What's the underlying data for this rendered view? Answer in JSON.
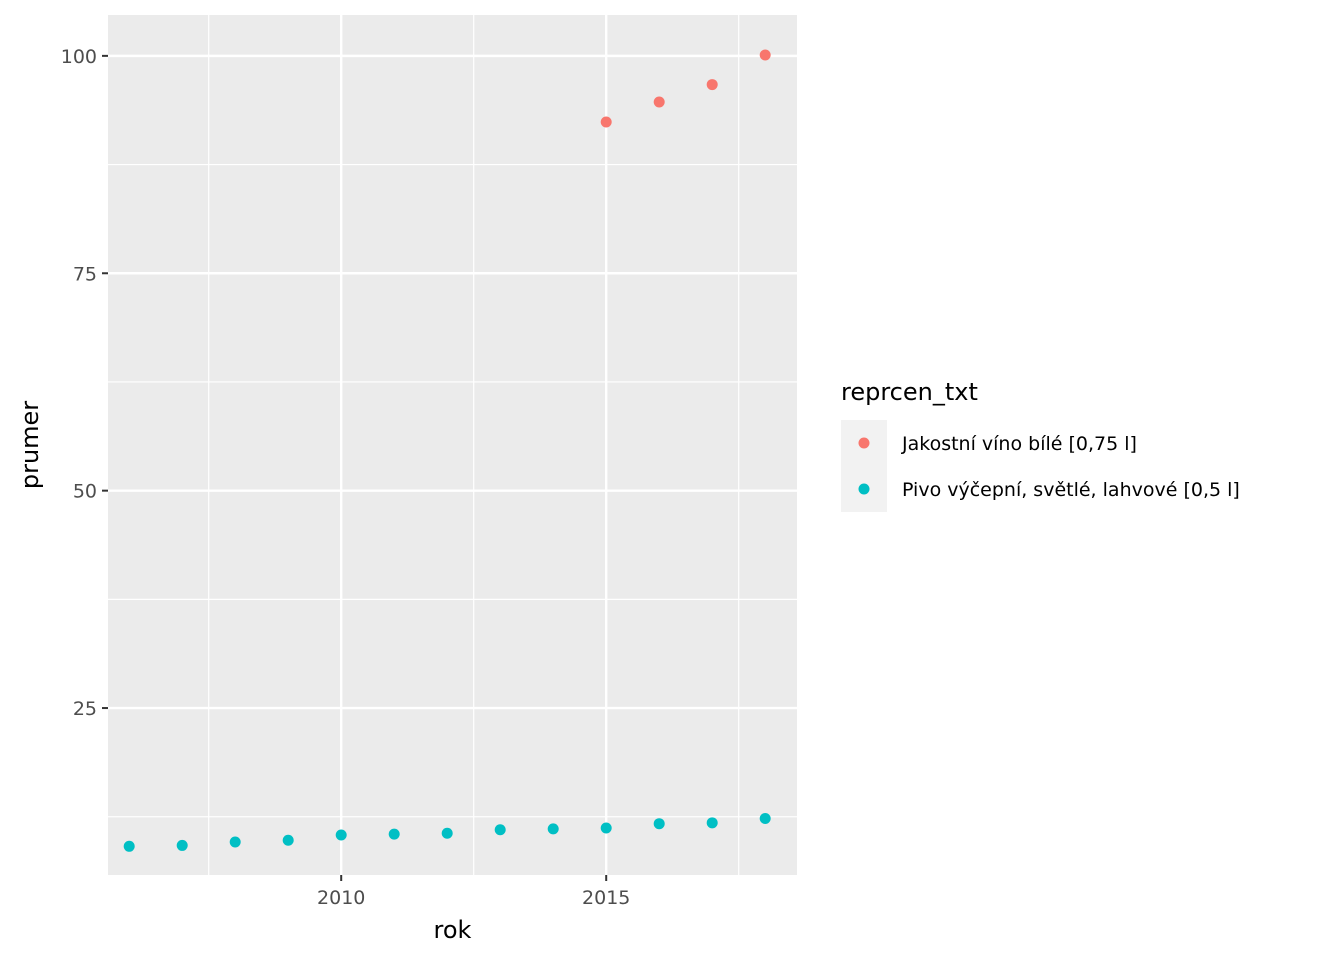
{
  "chart_data": {
    "type": "scatter",
    "xlabel": "rok",
    "ylabel": "prumer",
    "xlim": [
      2005.6,
      2018.6
    ],
    "ylim": [
      5.8,
      104.7
    ],
    "x_ticks": [
      2010,
      2015
    ],
    "y_ticks": [
      25,
      50,
      75,
      100
    ],
    "grid": true,
    "legend": {
      "title": "reprcen_txt",
      "position": "right"
    },
    "series": [
      {
        "name": "Jakostní víno bílé [0,75 l]",
        "color": "#F8766D",
        "points": [
          {
            "x": 2015,
            "y": 92.4
          },
          {
            "x": 2016,
            "y": 94.7
          },
          {
            "x": 2017,
            "y": 96.7
          },
          {
            "x": 2018,
            "y": 100.1
          }
        ]
      },
      {
        "name": "Pivo výčepní, světlé, lahvové [0,5 l]",
        "color": "#00BFC4",
        "points": [
          {
            "x": 2006,
            "y": 9.1
          },
          {
            "x": 2007,
            "y": 9.2
          },
          {
            "x": 2008,
            "y": 9.6
          },
          {
            "x": 2009,
            "y": 9.8
          },
          {
            "x": 2010,
            "y": 10.4
          },
          {
            "x": 2011,
            "y": 10.5
          },
          {
            "x": 2012,
            "y": 10.6
          },
          {
            "x": 2013,
            "y": 11.0
          },
          {
            "x": 2014,
            "y": 11.1
          },
          {
            "x": 2015,
            "y": 11.2
          },
          {
            "x": 2016,
            "y": 11.7
          },
          {
            "x": 2017,
            "y": 11.8
          },
          {
            "x": 2018,
            "y": 12.3
          }
        ]
      }
    ]
  }
}
